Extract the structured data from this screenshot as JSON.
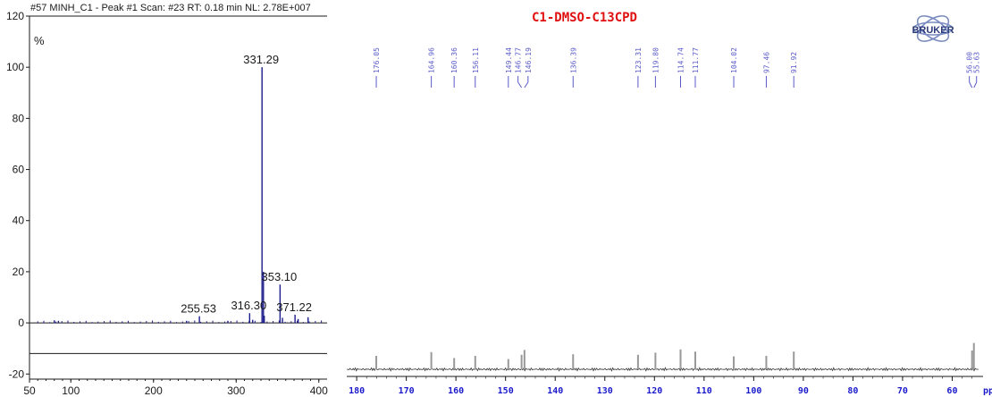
{
  "chart_data": [
    {
      "type": "bar",
      "title": "#57 MINH_C1 - Peak #1 Scan: #23  RT: 0.18 min NL: 2.78E+007",
      "ylabel": "%",
      "xlabel": "",
      "xlim": [
        50,
        410
      ],
      "ylim": [
        -22,
        120
      ],
      "xticks": [
        50,
        100,
        200,
        300,
        400
      ],
      "yticks": [
        -20,
        0,
        20,
        40,
        60,
        80,
        100,
        120
      ],
      "grid": false,
      "color": "#1c1c8c",
      "peaks": [
        {
          "x": 80,
          "y": 1.0
        },
        {
          "x": 85,
          "y": 0.8
        },
        {
          "x": 240,
          "y": 0.8
        },
        {
          "x": 255.53,
          "y": 2.6,
          "label": "255.53"
        },
        {
          "x": 290,
          "y": 0.8
        },
        {
          "x": 316.3,
          "y": 3.8,
          "label": "316.30"
        },
        {
          "x": 320,
          "y": 1.2
        },
        {
          "x": 331.29,
          "y": 100,
          "label": "331.29"
        },
        {
          "x": 333,
          "y": 20
        },
        {
          "x": 334,
          "y": 2.8
        },
        {
          "x": 353.1,
          "y": 15,
          "label": "353.10"
        },
        {
          "x": 356,
          "y": 2.0
        },
        {
          "x": 371.22,
          "y": 3.2,
          "label": "371.22"
        },
        {
          "x": 375,
          "y": 1.5
        },
        {
          "x": 387,
          "y": 2.2
        }
      ]
    },
    {
      "type": "line",
      "title": "C1-DMSO-C13CPD",
      "xunit": "ppm",
      "xlim": [
        182,
        54.5
      ],
      "xticks": [
        180,
        170,
        160,
        150,
        140,
        130,
        120,
        110,
        100,
        90,
        80,
        70,
        60
      ],
      "grid": false,
      "line_color": "#999999",
      "label_color": "#5a5ac8",
      "axis_label_color": "#1a1acc",
      "title_color": "#e01010",
      "peaks": [
        {
          "ppm": 176.05,
          "height": 0.25
        },
        {
          "ppm": 164.96,
          "height": 0.32
        },
        {
          "ppm": 160.36,
          "height": 0.21
        },
        {
          "ppm": 156.11,
          "height": 0.25
        },
        {
          "ppm": 149.44,
          "height": 0.19
        },
        {
          "ppm": 146.77,
          "height": 0.27
        },
        {
          "ppm": 146.19,
          "height": 0.36
        },
        {
          "ppm": 136.39,
          "height": 0.28
        },
        {
          "ppm": 123.31,
          "height": 0.27
        },
        {
          "ppm": 119.8,
          "height": 0.31
        },
        {
          "ppm": 114.74,
          "height": 0.37
        },
        {
          "ppm": 111.77,
          "height": 0.33
        },
        {
          "ppm": 104.02,
          "height": 0.24
        },
        {
          "ppm": 97.46,
          "height": 0.25
        },
        {
          "ppm": 91.92,
          "height": 0.33
        },
        {
          "ppm": 56.0,
          "height": 0.35
        },
        {
          "ppm": 55.63,
          "height": 0.49
        }
      ],
      "peak_labels": [
        "176.05",
        "164.96",
        "160.36",
        "156.11",
        "149.44",
        "146.77",
        "146.19",
        "136.39",
        "123.31",
        "119.80",
        "114.74",
        "111.77",
        "104.02",
        "97.46",
        "91.92",
        "56.00",
        "55.63"
      ]
    }
  ],
  "logo": {
    "text": "BRUKER",
    "color": "#2a3a7a",
    "icon": "bruker-atom-logo"
  }
}
